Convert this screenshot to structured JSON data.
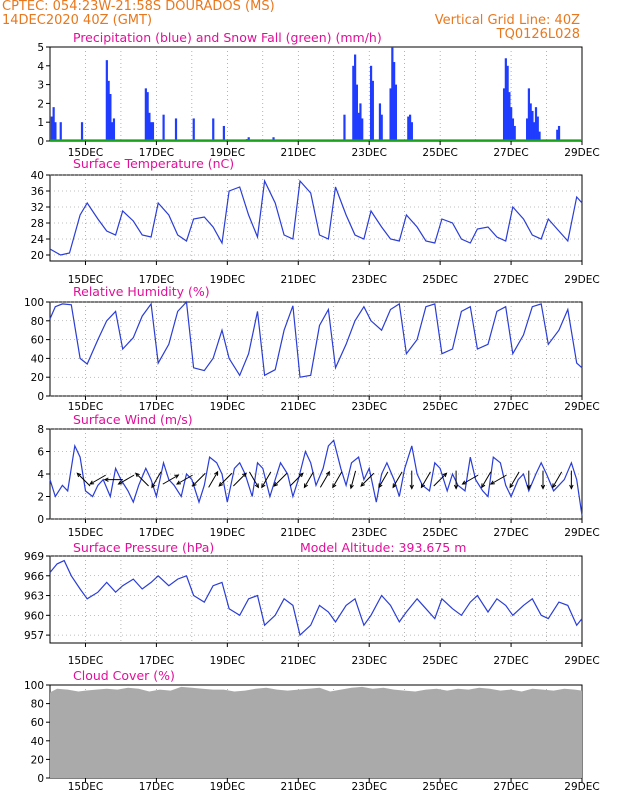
{
  "header": {
    "line1": "CPTEC:  054:23W-21:58S  DOURADOS (MS)",
    "line2": "14DEC2020 40Z (GMT)",
    "grid_note": "Vertical Grid Line: 40Z",
    "run_id": "TQ0126L028"
  },
  "colors": {
    "header": "#e8781e",
    "title": "#e0109a",
    "precip": "#1f3cff",
    "snow": "#1aa01a",
    "line": "#2a3dd6",
    "cloud": "#aaaaaa",
    "vector": "#000000",
    "grid": "#808080"
  },
  "x_axis": {
    "ticks": [
      "15DEC",
      "17DEC",
      "19DEC",
      "21DEC",
      "23DEC",
      "25DEC",
      "27DEC",
      "29DEC"
    ],
    "tick_days": [
      1,
      3,
      5,
      7,
      9,
      11,
      13,
      15
    ],
    "range_days": [
      0,
      15
    ]
  },
  "chart_data": [
    {
      "id": "precip",
      "type": "bar",
      "title": "Precipitation (blue) and Snow Fall (green) (mm/h)",
      "ylim": [
        0,
        5
      ],
      "yticks": [
        "0",
        "1",
        "2",
        "3",
        "4",
        "5"
      ],
      "series": [
        {
          "name": "Precipitation",
          "x": [
            0.05,
            0.1,
            0.15,
            0.3,
            0.9,
            1.6,
            1.65,
            1.7,
            1.75,
            1.8,
            2.7,
            2.75,
            2.8,
            2.85,
            2.9,
            3.2,
            3.55,
            4.05,
            4.6,
            4.9,
            5.55,
            5.6,
            6.3,
            8.3,
            8.55,
            8.6,
            8.65,
            8.7,
            8.75,
            8.8,
            9.05,
            9.1,
            9.3,
            9.35,
            9.6,
            9.65,
            9.7,
            9.75,
            10.1,
            10.15,
            10.2,
            12.8,
            12.85,
            12.9,
            12.95,
            13.0,
            13.05,
            13.1,
            13.45,
            13.5,
            13.55,
            13.6,
            13.65,
            13.7,
            13.75,
            13.8,
            14.3,
            14.35
          ],
          "values": [
            1.3,
            1.8,
            1.0,
            1.0,
            1.0,
            4.3,
            3.2,
            2.5,
            1.0,
            1.2,
            2.8,
            2.6,
            1.5,
            1.0,
            1.0,
            1.4,
            1.2,
            1.2,
            1.2,
            0.8,
            0.1,
            0.2,
            0.2,
            1.4,
            4.0,
            4.6,
            3.0,
            1.5,
            2.0,
            1.2,
            4.0,
            3.2,
            2.0,
            1.4,
            2.8,
            5.0,
            4.2,
            3.0,
            1.3,
            1.4,
            1.0,
            2.8,
            4.4,
            4.0,
            2.6,
            1.8,
            1.2,
            0.8,
            1.2,
            2.8,
            2.0,
            1.6,
            1.0,
            1.8,
            1.3,
            0.5,
            0.6,
            0.8
          ]
        },
        {
          "name": "Snow Fall",
          "x": [],
          "values": []
        }
      ]
    },
    {
      "id": "temp",
      "type": "line",
      "title": "Surface Temperature (nC)",
      "ylim": [
        18.5,
        40
      ],
      "yticks": [
        "20",
        "24",
        "28",
        "32",
        "36",
        "40"
      ],
      "series": [
        {
          "name": "Temperature",
          "x": [
            0,
            0.1,
            0.3,
            0.55,
            0.85,
            1.05,
            1.35,
            1.6,
            1.85,
            2.05,
            2.35,
            2.6,
            2.85,
            3.05,
            3.35,
            3.6,
            3.85,
            4.05,
            4.35,
            4.6,
            4.85,
            5.05,
            5.35,
            5.6,
            5.85,
            6.05,
            6.35,
            6.6,
            6.85,
            7.05,
            7.35,
            7.6,
            7.85,
            8.05,
            8.35,
            8.6,
            8.85,
            9.05,
            9.35,
            9.6,
            9.85,
            10.05,
            10.35,
            10.6,
            10.85,
            11.05,
            11.35,
            11.6,
            11.85,
            12.05,
            12.35,
            12.6,
            12.85,
            13.05,
            13.35,
            13.6,
            13.85,
            14.05,
            14.35,
            14.6,
            14.85,
            15
          ],
          "values": [
            21.5,
            21.0,
            20.0,
            20.5,
            30.0,
            33.0,
            29.0,
            26.0,
            25.0,
            31.0,
            28.5,
            25.0,
            24.5,
            33.0,
            30.0,
            25.0,
            23.5,
            29.0,
            29.5,
            27.0,
            23.0,
            36.0,
            37.0,
            30.0,
            24.5,
            38.5,
            33.0,
            25.0,
            24.0,
            38.5,
            35.5,
            25.0,
            24.0,
            37.0,
            30.0,
            25.0,
            24.0,
            31.0,
            27.0,
            24.0,
            23.5,
            30.0,
            27.0,
            23.5,
            23.0,
            29.0,
            28.0,
            24.0,
            23.0,
            26.5,
            27.0,
            24.5,
            23.5,
            32.0,
            29.0,
            25.0,
            24.0,
            29.0,
            26.0,
            23.5,
            34.5,
            33.0
          ]
        }
      ]
    },
    {
      "id": "humidity",
      "type": "line",
      "title": "Relative Humidity (%)",
      "ylim": [
        0,
        100
      ],
      "yticks": [
        "0",
        "20",
        "40",
        "60",
        "80",
        "100"
      ],
      "series": [
        {
          "name": "Relative Humidity",
          "x": [
            0,
            0.15,
            0.35,
            0.6,
            0.85,
            1.05,
            1.35,
            1.6,
            1.85,
            2.05,
            2.35,
            2.6,
            2.85,
            3.05,
            3.35,
            3.6,
            3.85,
            4.05,
            4.35,
            4.6,
            4.85,
            5.05,
            5.35,
            5.6,
            5.85,
            6.05,
            6.35,
            6.6,
            6.85,
            7.05,
            7.35,
            7.6,
            7.85,
            8.05,
            8.35,
            8.6,
            8.85,
            9.05,
            9.35,
            9.6,
            9.85,
            10.05,
            10.35,
            10.6,
            10.85,
            11.05,
            11.35,
            11.6,
            11.85,
            12.05,
            12.35,
            12.6,
            12.85,
            13.05,
            13.35,
            13.6,
            13.85,
            14.05,
            14.35,
            14.6,
            14.85,
            15
          ],
          "values": [
            82,
            95,
            98,
            97,
            40,
            34,
            60,
            80,
            90,
            50,
            62,
            85,
            98,
            35,
            55,
            90,
            100,
            30,
            27,
            40,
            70,
            40,
            22,
            45,
            90,
            22,
            28,
            70,
            96,
            20,
            22,
            75,
            92,
            30,
            55,
            80,
            95,
            80,
            70,
            92,
            98,
            45,
            60,
            95,
            98,
            45,
            50,
            90,
            95,
            50,
            55,
            90,
            95,
            45,
            65,
            95,
            98,
            55,
            70,
            92,
            35,
            30
          ]
        }
      ]
    },
    {
      "id": "wind",
      "type": "line",
      "title": "Surface Wind (m/s)",
      "ylim": [
        0,
        8
      ],
      "yticks": [
        "0",
        "2",
        "4",
        "6",
        "8"
      ],
      "series": [
        {
          "name": "Wind Speed",
          "x": [
            0,
            0.15,
            0.35,
            0.5,
            0.7,
            0.85,
            1.0,
            1.2,
            1.35,
            1.5,
            1.7,
            1.85,
            2.0,
            2.2,
            2.35,
            2.5,
            2.7,
            2.85,
            3.0,
            3.2,
            3.35,
            3.5,
            3.7,
            3.85,
            4.0,
            4.2,
            4.35,
            4.5,
            4.7,
            4.85,
            5.0,
            5.2,
            5.35,
            5.5,
            5.7,
            5.85,
            6.0,
            6.2,
            6.35,
            6.5,
            6.7,
            6.85,
            7.0,
            7.2,
            7.35,
            7.5,
            7.7,
            7.85,
            8.0,
            8.2,
            8.35,
            8.5,
            8.7,
            8.85,
            9.0,
            9.2,
            9.35,
            9.5,
            9.7,
            9.85,
            10.0,
            10.2,
            10.35,
            10.5,
            10.7,
            10.85,
            11.0,
            11.2,
            11.35,
            11.5,
            11.7,
            11.85,
            12.0,
            12.2,
            12.35,
            12.5,
            12.7,
            12.85,
            13.0,
            13.2,
            13.35,
            13.5,
            13.7,
            13.85,
            14.0,
            14.2,
            14.35,
            14.5,
            14.7,
            14.85,
            15
          ],
          "values": [
            3.5,
            2.0,
            3.0,
            2.5,
            6.5,
            5.5,
            2.5,
            2.0,
            3.0,
            3.5,
            2.0,
            4.5,
            3.5,
            2.5,
            1.5,
            3.0,
            4.5,
            3.5,
            2.0,
            5.0,
            3.5,
            3.0,
            2.0,
            4.0,
            3.5,
            1.5,
            3.0,
            5.5,
            5.0,
            4.0,
            1.5,
            4.5,
            5.0,
            4.0,
            2.0,
            5.0,
            4.5,
            2.0,
            3.5,
            5.0,
            4.0,
            2.0,
            3.5,
            6.0,
            5.0,
            3.0,
            4.5,
            6.5,
            7.0,
            4.5,
            3.0,
            5.0,
            5.5,
            3.5,
            4.5,
            1.5,
            4.0,
            5.0,
            3.5,
            2.0,
            4.5,
            6.5,
            4.0,
            3.0,
            2.5,
            5.0,
            4.5,
            2.5,
            4.0,
            3.0,
            2.5,
            5.5,
            3.5,
            2.5,
            2.0,
            5.5,
            5.0,
            3.0,
            2.0,
            3.5,
            4.0,
            2.5,
            4.0,
            5.0,
            4.0,
            2.5,
            3.0,
            3.5,
            5.0,
            3.5,
            0.3
          ]
        },
        {
          "name": "Wind Direction",
          "x": [
            0.95,
            1.35,
            1.8,
            2.15,
            2.6,
            3.0,
            3.4,
            3.8,
            4.2,
            4.6,
            4.95,
            5.35,
            5.75,
            6.1,
            6.5,
            6.95,
            7.3,
            7.75,
            8.1,
            8.55,
            8.95,
            9.4,
            9.8,
            10.2,
            10.6,
            11.0,
            11.45,
            11.85,
            12.3,
            12.65,
            13.1,
            13.5,
            13.9,
            14.3,
            14.7
          ],
          "values": [
            135,
            210,
            180,
            210,
            135,
            240,
            30,
            210,
            225,
            60,
            225,
            45,
            300,
            240,
            225,
            45,
            240,
            60,
            240,
            255,
            225,
            240,
            240,
            270,
            240,
            45,
            270,
            210,
            240,
            210,
            240,
            270,
            270,
            240,
            270
          ]
        }
      ]
    },
    {
      "id": "pressure",
      "type": "line",
      "title": "Surface Pressure (hPa)",
      "annotation": "Model Altitude: 393.675 m",
      "ylim": [
        955.8,
        969
      ],
      "yticks": [
        "957",
        "960",
        "963",
        "966",
        "969"
      ],
      "series": [
        {
          "name": "Surface Pressure",
          "x": [
            0,
            0.2,
            0.4,
            0.6,
            0.85,
            1.05,
            1.35,
            1.6,
            1.85,
            2.05,
            2.35,
            2.6,
            2.85,
            3.05,
            3.35,
            3.6,
            3.85,
            4.05,
            4.35,
            4.6,
            4.85,
            5.05,
            5.35,
            5.6,
            5.85,
            6.05,
            6.35,
            6.6,
            6.85,
            7.05,
            7.35,
            7.6,
            7.85,
            8.05,
            8.35,
            8.6,
            8.85,
            9.05,
            9.35,
            9.6,
            9.85,
            10.05,
            10.35,
            10.6,
            10.85,
            11.05,
            11.35,
            11.6,
            11.85,
            12.05,
            12.35,
            12.6,
            12.85,
            13.05,
            13.35,
            13.6,
            13.85,
            14.05,
            14.35,
            14.6,
            14.85,
            15
          ],
          "values": [
            966.5,
            967.8,
            968.3,
            966.0,
            964.0,
            962.5,
            963.5,
            965.0,
            963.5,
            964.5,
            965.5,
            964.0,
            965.0,
            966.0,
            964.5,
            965.5,
            966.0,
            963.0,
            962.0,
            964.5,
            965.0,
            961.0,
            960.0,
            962.5,
            963.0,
            958.5,
            960.0,
            962.5,
            961.5,
            957.0,
            958.5,
            961.5,
            960.5,
            959.0,
            961.5,
            962.5,
            958.5,
            960.0,
            963.0,
            961.5,
            959.0,
            960.5,
            962.5,
            961.0,
            959.5,
            962.5,
            961.0,
            960.0,
            962.0,
            963.0,
            960.5,
            962.5,
            961.5,
            960.0,
            961.5,
            962.5,
            960.0,
            959.5,
            962.0,
            961.5,
            958.5,
            959.5
          ]
        }
      ]
    },
    {
      "id": "cloud",
      "type": "area",
      "title": "Cloud Cover (%)",
      "ylim": [
        0,
        100
      ],
      "yticks": [
        "0",
        "20",
        "40",
        "60",
        "80",
        "100"
      ],
      "series": [
        {
          "name": "Cloud Cover",
          "x": [
            0,
            0.2,
            0.5,
            0.8,
            1.0,
            1.3,
            1.6,
            1.9,
            2.2,
            2.5,
            2.8,
            3.1,
            3.4,
            3.7,
            4.0,
            4.3,
            4.6,
            4.9,
            5.2,
            5.5,
            5.8,
            6.1,
            6.4,
            6.7,
            7.0,
            7.3,
            7.6,
            7.9,
            8.2,
            8.5,
            8.8,
            9.1,
            9.4,
            9.7,
            10.0,
            10.3,
            10.6,
            10.9,
            11.2,
            11.5,
            11.8,
            12.1,
            12.4,
            12.7,
            13.0,
            13.3,
            13.6,
            13.9,
            14.2,
            14.5,
            14.8,
            15
          ],
          "values": [
            92,
            96,
            95,
            93,
            94,
            95,
            96,
            95,
            97,
            96,
            93,
            95,
            94,
            98,
            97,
            96,
            95,
            95,
            93,
            94,
            96,
            97,
            95,
            94,
            95,
            96,
            97,
            93,
            95,
            97,
            98,
            96,
            97,
            95,
            94,
            93,
            95,
            96,
            94,
            96,
            95,
            97,
            96,
            94,
            95,
            93,
            96,
            95,
            94,
            96,
            95,
            94
          ]
        }
      ]
    }
  ]
}
